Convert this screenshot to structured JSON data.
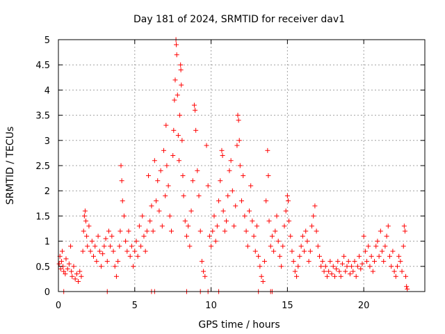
{
  "chart_data": {
    "type": "scatter",
    "title": "Day 181 of 2024, SRMTID for receiver dav1",
    "xlabel": "GPS time / hours",
    "ylabel": "SRMTID / TECUs",
    "xlim": [
      0,
      24
    ],
    "ylim": [
      0,
      5
    ],
    "xticks": [
      0,
      5,
      10,
      15,
      20
    ],
    "xtick_labels": [
      "0",
      "5",
      "10",
      "15",
      "20"
    ],
    "yticks": [
      0,
      0.5,
      1,
      1.5,
      2,
      2.5,
      3,
      3.5,
      4,
      4.5,
      5
    ],
    "ytick_labels": [
      "0",
      "0.5",
      "1",
      "1.5",
      "2",
      "2.5",
      "3",
      "3.5",
      "4",
      "4.5",
      "5"
    ],
    "grid": true,
    "marker": "+",
    "color": "#ff0000",
    "series": [
      {
        "name": "SRMTID dav1",
        "points": [
          [
            0.05,
            0.55
          ],
          [
            0.1,
            0.7
          ],
          [
            0.15,
            0.45
          ],
          [
            0.2,
            0.6
          ],
          [
            0.25,
            0.8
          ],
          [
            0.3,
            0.5
          ],
          [
            0.35,
            0.4
          ],
          [
            0.45,
            0.35
          ],
          [
            0.5,
            0.65
          ],
          [
            0.6,
            0.45
          ],
          [
            0.7,
            0.55
          ],
          [
            0.8,
            0.9
          ],
          [
            0.85,
            0.4
          ],
          [
            0.9,
            0.3
          ],
          [
            1.0,
            0.5
          ],
          [
            1.1,
            0.25
          ],
          [
            1.2,
            0.35
          ],
          [
            1.3,
            0.2
          ],
          [
            1.4,
            0.4
          ],
          [
            1.5,
            0.3
          ],
          [
            1.6,
            0.8
          ],
          [
            1.65,
            1.2
          ],
          [
            1.7,
            1.5
          ],
          [
            1.75,
            1.6
          ],
          [
            1.8,
            1.4
          ],
          [
            1.85,
            1.1
          ],
          [
            1.9,
            0.9
          ],
          [
            2.0,
            1.3
          ],
          [
            2.1,
            0.8
          ],
          [
            2.2,
            1.0
          ],
          [
            2.3,
            0.7
          ],
          [
            2.4,
            0.9
          ],
          [
            2.5,
            0.6
          ],
          [
            2.6,
            1.1
          ],
          [
            2.7,
            0.8
          ],
          [
            2.8,
            0.5
          ],
          [
            2.9,
            0.75
          ],
          [
            3.0,
            0.9
          ],
          [
            3.1,
            1.05
          ],
          [
            3.2,
            0.6
          ],
          [
            3.3,
            1.2
          ],
          [
            3.4,
            0.9
          ],
          [
            3.5,
            1.1
          ],
          [
            3.6,
            0.8
          ],
          [
            3.7,
            0.5
          ],
          [
            3.8,
            0.3
          ],
          [
            3.9,
            0.6
          ],
          [
            4.0,
            0.9
          ],
          [
            4.05,
            1.2
          ],
          [
            4.1,
            2.5
          ],
          [
            4.15,
            2.2
          ],
          [
            4.2,
            1.8
          ],
          [
            4.3,
            1.5
          ],
          [
            4.4,
            1.0
          ],
          [
            4.5,
            0.8
          ],
          [
            4.6,
            1.2
          ],
          [
            4.7,
            0.7
          ],
          [
            4.8,
            0.9
          ],
          [
            4.9,
            0.5
          ],
          [
            5.0,
            0.8
          ],
          [
            5.1,
            1.0
          ],
          [
            5.2,
            0.7
          ],
          [
            5.3,
            1.3
          ],
          [
            5.4,
            0.9
          ],
          [
            5.5,
            1.5
          ],
          [
            5.6,
            1.1
          ],
          [
            5.7,
            0.8
          ],
          [
            5.8,
            1.2
          ],
          [
            5.9,
            2.3
          ],
          [
            6.0,
            1.4
          ],
          [
            6.1,
            1.7
          ],
          [
            6.2,
            1.2
          ],
          [
            6.3,
            2.6
          ],
          [
            6.4,
            1.8
          ],
          [
            6.5,
            2.2
          ],
          [
            6.6,
            1.6
          ],
          [
            6.7,
            2.4
          ],
          [
            6.8,
            1.3
          ],
          [
            6.9,
            2.8
          ],
          [
            7.0,
            1.9
          ],
          [
            7.05,
            3.3
          ],
          [
            7.1,
            2.5
          ],
          [
            7.2,
            2.1
          ],
          [
            7.3,
            1.5
          ],
          [
            7.4,
            1.2
          ],
          [
            7.5,
            2.7
          ],
          [
            7.55,
            3.2
          ],
          [
            7.6,
            3.8
          ],
          [
            7.65,
            4.2
          ],
          [
            7.7,
            5.0
          ],
          [
            7.72,
            4.9
          ],
          [
            7.75,
            4.7
          ],
          [
            7.8,
            3.9
          ],
          [
            7.85,
            3.1
          ],
          [
            7.9,
            2.6
          ],
          [
            7.95,
            3.5
          ],
          [
            8.0,
            4.5
          ],
          [
            8.02,
            4.4
          ],
          [
            8.05,
            4.1
          ],
          [
            8.1,
            3.0
          ],
          [
            8.15,
            2.3
          ],
          [
            8.2,
            1.9
          ],
          [
            8.3,
            1.4
          ],
          [
            8.4,
            1.1
          ],
          [
            8.5,
            1.3
          ],
          [
            8.6,
            0.9
          ],
          [
            8.7,
            1.6
          ],
          [
            8.8,
            2.2
          ],
          [
            8.9,
            3.7
          ],
          [
            8.95,
            3.6
          ],
          [
            9.0,
            3.2
          ],
          [
            9.1,
            2.4
          ],
          [
            9.2,
            1.9
          ],
          [
            9.3,
            1.2
          ],
          [
            9.4,
            0.6
          ],
          [
            9.5,
            0.4
          ],
          [
            9.6,
            0.3
          ],
          [
            9.7,
            2.9
          ],
          [
            9.8,
            2.1
          ],
          [
            9.9,
            1.1
          ],
          [
            10.0,
            0.9
          ],
          [
            10.1,
            1.2
          ],
          [
            10.2,
            1.5
          ],
          [
            10.3,
            1.0
          ],
          [
            10.4,
            1.3
          ],
          [
            10.5,
            1.8
          ],
          [
            10.6,
            2.2
          ],
          [
            10.7,
            2.8
          ],
          [
            10.75,
            2.7
          ],
          [
            10.8,
            1.6
          ],
          [
            10.9,
            1.2
          ],
          [
            11.0,
            1.4
          ],
          [
            11.1,
            1.9
          ],
          [
            11.2,
            2.4
          ],
          [
            11.3,
            2.6
          ],
          [
            11.4,
            2.0
          ],
          [
            11.5,
            1.3
          ],
          [
            11.6,
            1.7
          ],
          [
            11.7,
            2.9
          ],
          [
            11.75,
            3.5
          ],
          [
            11.8,
            3.4
          ],
          [
            11.85,
            3.0
          ],
          [
            11.9,
            2.5
          ],
          [
            12.0,
            1.8
          ],
          [
            12.1,
            2.3
          ],
          [
            12.2,
            1.5
          ],
          [
            12.3,
            1.2
          ],
          [
            12.4,
            0.9
          ],
          [
            12.5,
            1.6
          ],
          [
            12.6,
            2.1
          ],
          [
            12.7,
            1.4
          ],
          [
            12.8,
            1.1
          ],
          [
            12.9,
            0.8
          ],
          [
            13.0,
            1.3
          ],
          [
            13.1,
            0.7
          ],
          [
            13.2,
            0.5
          ],
          [
            13.3,
            0.3
          ],
          [
            13.4,
            0.2
          ],
          [
            13.5,
            0.6
          ],
          [
            13.6,
            1.8
          ],
          [
            13.7,
            2.8
          ],
          [
            13.75,
            2.3
          ],
          [
            13.8,
            1.4
          ],
          [
            13.9,
            0.9
          ],
          [
            14.0,
            1.1
          ],
          [
            14.1,
            0.8
          ],
          [
            14.2,
            1.2
          ],
          [
            14.3,
            1.5
          ],
          [
            14.4,
            1.0
          ],
          [
            14.5,
            0.7
          ],
          [
            14.6,
            0.5
          ],
          [
            14.7,
            0.9
          ],
          [
            14.8,
            1.3
          ],
          [
            14.9,
            1.6
          ],
          [
            15.0,
            1.9
          ],
          [
            15.05,
            1.8
          ],
          [
            15.1,
            1.4
          ],
          [
            15.2,
            1.1
          ],
          [
            15.3,
            0.8
          ],
          [
            15.4,
            0.6
          ],
          [
            15.5,
            0.4
          ],
          [
            15.6,
            0.3
          ],
          [
            15.7,
            0.5
          ],
          [
            15.8,
            0.7
          ],
          [
            15.9,
            0.9
          ],
          [
            16.0,
            1.1
          ],
          [
            16.1,
            0.8
          ],
          [
            16.2,
            1.2
          ],
          [
            16.3,
            1.0
          ],
          [
            16.4,
            0.6
          ],
          [
            16.5,
            0.8
          ],
          [
            16.6,
            1.3
          ],
          [
            16.7,
            1.5
          ],
          [
            16.8,
            1.7
          ],
          [
            16.9,
            1.2
          ],
          [
            17.0,
            0.9
          ],
          [
            17.1,
            0.7
          ],
          [
            17.2,
            0.5
          ],
          [
            17.3,
            0.6
          ],
          [
            17.4,
            0.4
          ],
          [
            17.5,
            0.5
          ],
          [
            17.6,
            0.3
          ],
          [
            17.7,
            0.4
          ],
          [
            17.8,
            0.6
          ],
          [
            17.9,
            0.35
          ],
          [
            18.0,
            0.5
          ],
          [
            18.1,
            0.3
          ],
          [
            18.2,
            0.45
          ],
          [
            18.3,
            0.6
          ],
          [
            18.4,
            0.4
          ],
          [
            18.5,
            0.3
          ],
          [
            18.6,
            0.55
          ],
          [
            18.7,
            0.7
          ],
          [
            18.8,
            0.4
          ],
          [
            18.9,
            0.5
          ],
          [
            19.0,
            0.6
          ],
          [
            19.1,
            0.35
          ],
          [
            19.2,
            0.5
          ],
          [
            19.3,
            0.4
          ],
          [
            19.4,
            0.6
          ],
          [
            19.5,
            0.3
          ],
          [
            19.6,
            0.5
          ],
          [
            19.7,
            0.7
          ],
          [
            19.8,
            0.45
          ],
          [
            19.9,
            0.55
          ],
          [
            20.0,
            1.1
          ],
          [
            20.1,
            0.8
          ],
          [
            20.2,
            0.6
          ],
          [
            20.3,
            0.9
          ],
          [
            20.4,
            0.5
          ],
          [
            20.5,
            0.7
          ],
          [
            20.6,
            0.4
          ],
          [
            20.7,
            0.6
          ],
          [
            20.8,
            0.9
          ],
          [
            20.9,
            1.0
          ],
          [
            21.0,
            0.7
          ],
          [
            21.1,
            1.2
          ],
          [
            21.2,
            0.8
          ],
          [
            21.3,
            0.6
          ],
          [
            21.4,
            0.9
          ],
          [
            21.5,
            1.1
          ],
          [
            21.6,
            1.3
          ],
          [
            21.7,
            0.7
          ],
          [
            21.8,
            0.5
          ],
          [
            21.9,
            0.8
          ],
          [
            22.0,
            0.4
          ],
          [
            22.1,
            0.3
          ],
          [
            22.2,
            0.5
          ],
          [
            22.3,
            0.7
          ],
          [
            22.4,
            0.6
          ],
          [
            22.5,
            0.4
          ],
          [
            22.6,
            0.9
          ],
          [
            22.65,
            1.3
          ],
          [
            22.7,
            1.2
          ],
          [
            22.75,
            0.3
          ],
          [
            22.8,
            0.1
          ],
          [
            22.85,
            0.05
          ],
          [
            0.35,
            0.0
          ],
          [
            3.2,
            0.0
          ],
          [
            6.1,
            0.0
          ],
          [
            6.3,
            0.0
          ],
          [
            8.4,
            0.0
          ],
          [
            9.3,
            0.0
          ],
          [
            9.8,
            0.0
          ],
          [
            10.5,
            0.0
          ],
          [
            13.1,
            0.0
          ],
          [
            13.9,
            0.0
          ],
          [
            14.0,
            0.0
          ]
        ]
      }
    ]
  }
}
